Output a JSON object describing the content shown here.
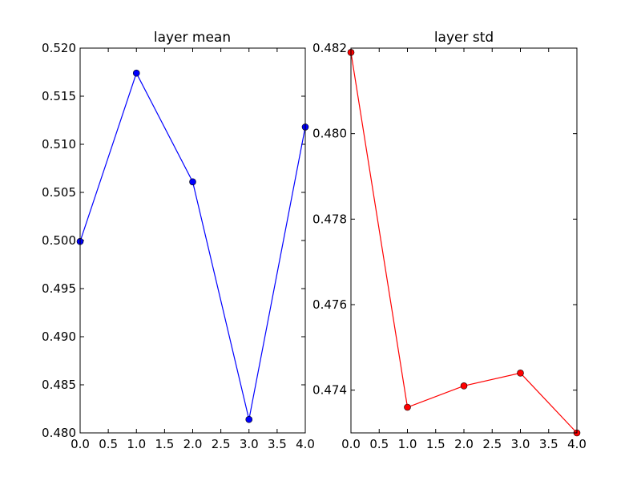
{
  "figure": {
    "background": "#ffffff"
  },
  "chart_data": [
    {
      "type": "line",
      "title": "layer mean",
      "xlabel": "",
      "ylabel": "",
      "x": [
        0,
        1,
        2,
        3,
        4
      ],
      "xlim": [
        0,
        4
      ],
      "ylim": [
        0.48,
        0.52
      ],
      "grid": false,
      "xticks": [
        0,
        0.5,
        1,
        1.5,
        2,
        2.5,
        3,
        3.5,
        4
      ],
      "xtick_labels": [
        "0.0",
        "0.5",
        "1.0",
        "1.5",
        "2.0",
        "2.5",
        "3.0",
        "3.5",
        "4.0"
      ],
      "yticks": [
        0.48,
        0.485,
        0.49,
        0.495,
        0.5,
        0.505,
        0.51,
        0.515,
        0.52
      ],
      "ytick_labels": [
        "0.480",
        "0.485",
        "0.490",
        "0.495",
        "0.500",
        "0.505",
        "0.510",
        "0.515",
        "0.520"
      ],
      "series": [
        {
          "values": [
            0.4999,
            0.5174,
            0.5061,
            0.4814,
            0.5118
          ],
          "color": "#0000ff",
          "marker": "circle"
        }
      ]
    },
    {
      "type": "line",
      "title": "layer std",
      "xlabel": "",
      "ylabel": "",
      "x": [
        0,
        1,
        2,
        3,
        4
      ],
      "xlim": [
        0,
        4
      ],
      "ylim": [
        0.473,
        0.482
      ],
      "grid": false,
      "xticks": [
        0,
        0.5,
        1,
        1.5,
        2,
        2.5,
        3,
        3.5,
        4
      ],
      "xtick_labels": [
        "0.0",
        "0.5",
        "1.0",
        "1.5",
        "2.0",
        "2.5",
        "3.0",
        "3.5",
        "4.0"
      ],
      "yticks": [
        0.474,
        0.476,
        0.478,
        0.48,
        0.482
      ],
      "ytick_labels": [
        "0.474",
        "0.476",
        "0.478",
        "0.480",
        "0.482"
      ],
      "series": [
        {
          "values": [
            0.4819,
            0.4736,
            0.4741,
            0.4744,
            0.473
          ],
          "color": "#ff0000",
          "marker": "circle"
        }
      ]
    }
  ]
}
